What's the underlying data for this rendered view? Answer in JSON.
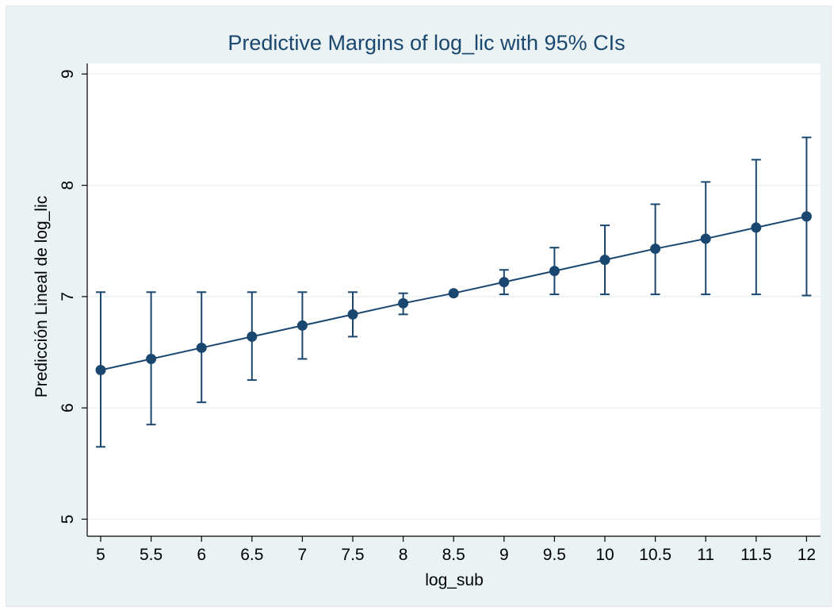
{
  "chart_data": {
    "type": "line",
    "title": "Predictive Margins of log_lic with 95% CIs",
    "xlabel": "log_sub",
    "ylabel": "Predicción Lineal de log_lic",
    "x": [
      5,
      5.5,
      6,
      6.5,
      7,
      7.5,
      8,
      8.5,
      9,
      9.5,
      10,
      10.5,
      11,
      11.5,
      12
    ],
    "x_tick_labels": [
      "5",
      "5.5",
      "6",
      "6.5",
      "7",
      "7.5",
      "8",
      "8.5",
      "9",
      "9.5",
      "10",
      "10.5",
      "11",
      "11.5",
      "12"
    ],
    "y_ticks": [
      5,
      6,
      7,
      8,
      9
    ],
    "y_tick_labels": [
      "5",
      "6",
      "7",
      "8",
      "9"
    ],
    "series": [
      {
        "values": [
          6.34,
          6.44,
          6.54,
          6.64,
          6.74,
          6.84,
          6.94,
          7.03,
          7.13,
          7.23,
          7.33,
          7.43,
          7.52,
          7.62,
          7.72
        ],
        "ci_lower": [
          5.65,
          5.85,
          6.05,
          6.25,
          6.44,
          6.64,
          6.84,
          7.03,
          7.02,
          7.02,
          7.02,
          7.02,
          7.02,
          7.02,
          7.01
        ],
        "ci_upper": [
          7.04,
          7.04,
          7.04,
          7.04,
          7.04,
          7.04,
          7.03,
          7.03,
          7.24,
          7.44,
          7.64,
          7.83,
          8.03,
          8.23,
          8.43
        ]
      }
    ],
    "xlim": [
      4.9,
      12.1
    ],
    "ylim": [
      4.9,
      9.2
    ],
    "grid": "horizontal",
    "colors": {
      "series": "#1a476f",
      "outer_background": "#eaf2f3",
      "plot_background": "#ffffff",
      "gridline": "#eaf2f3",
      "text": "#000000",
      "title": "#1a476f"
    }
  }
}
